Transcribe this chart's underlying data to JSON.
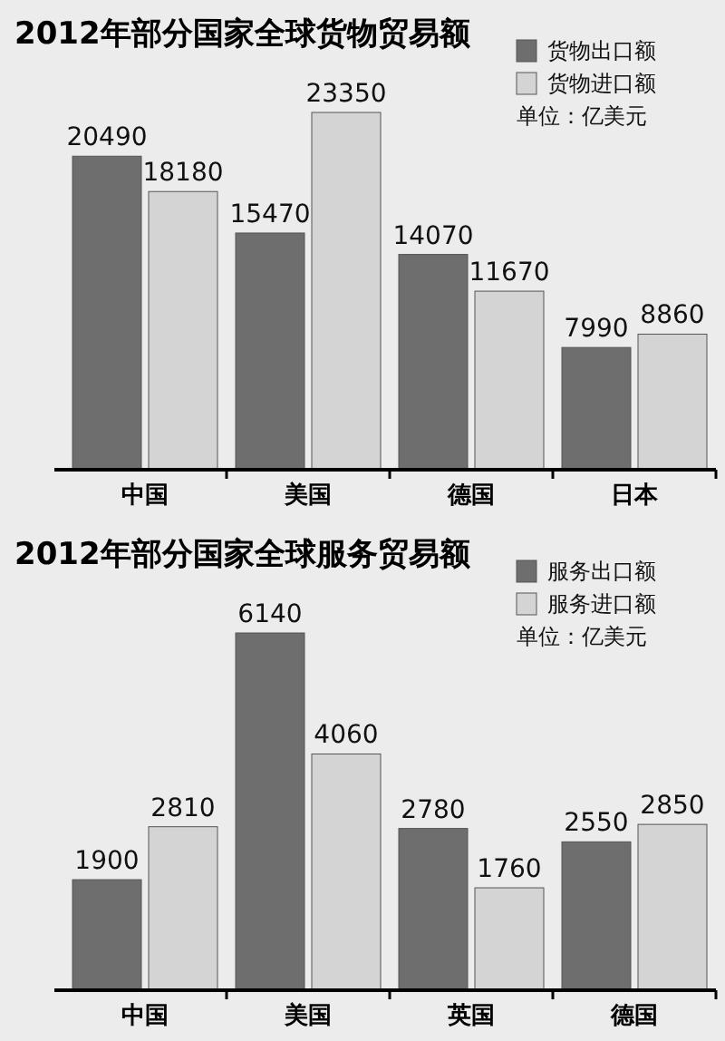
{
  "chart_data": [
    {
      "type": "bar",
      "title": "2012年部分国家全球货物贸易额",
      "categories": [
        "中国",
        "美国",
        "德国",
        "日本"
      ],
      "series": [
        {
          "name": "货物出口额",
          "color": "#6e6e6e",
          "values": [
            20490,
            15470,
            14070,
            7990
          ]
        },
        {
          "name": "货物进口额",
          "color": "#d4d4d4",
          "values": [
            18180,
            23350,
            11670,
            8860
          ]
        }
      ],
      "data_labels": true,
      "legend": "top right",
      "annotations": [
        "单位：亿美元"
      ]
    },
    {
      "type": "bar",
      "title": "2012年部分国家全球服务贸易额",
      "categories": [
        "中国",
        "美国",
        "英国",
        "德国"
      ],
      "series": [
        {
          "name": "服务出口额",
          "color": "#6e6e6e",
          "values": [
            1900,
            6140,
            2780,
            2550
          ]
        },
        {
          "name": "服务进口额",
          "color": "#d4d4d4",
          "values": [
            2810,
            4060,
            1760,
            2850
          ]
        }
      ],
      "data_labels": true,
      "legend": "top right",
      "annotations": [
        "单位：亿美元"
      ]
    }
  ]
}
